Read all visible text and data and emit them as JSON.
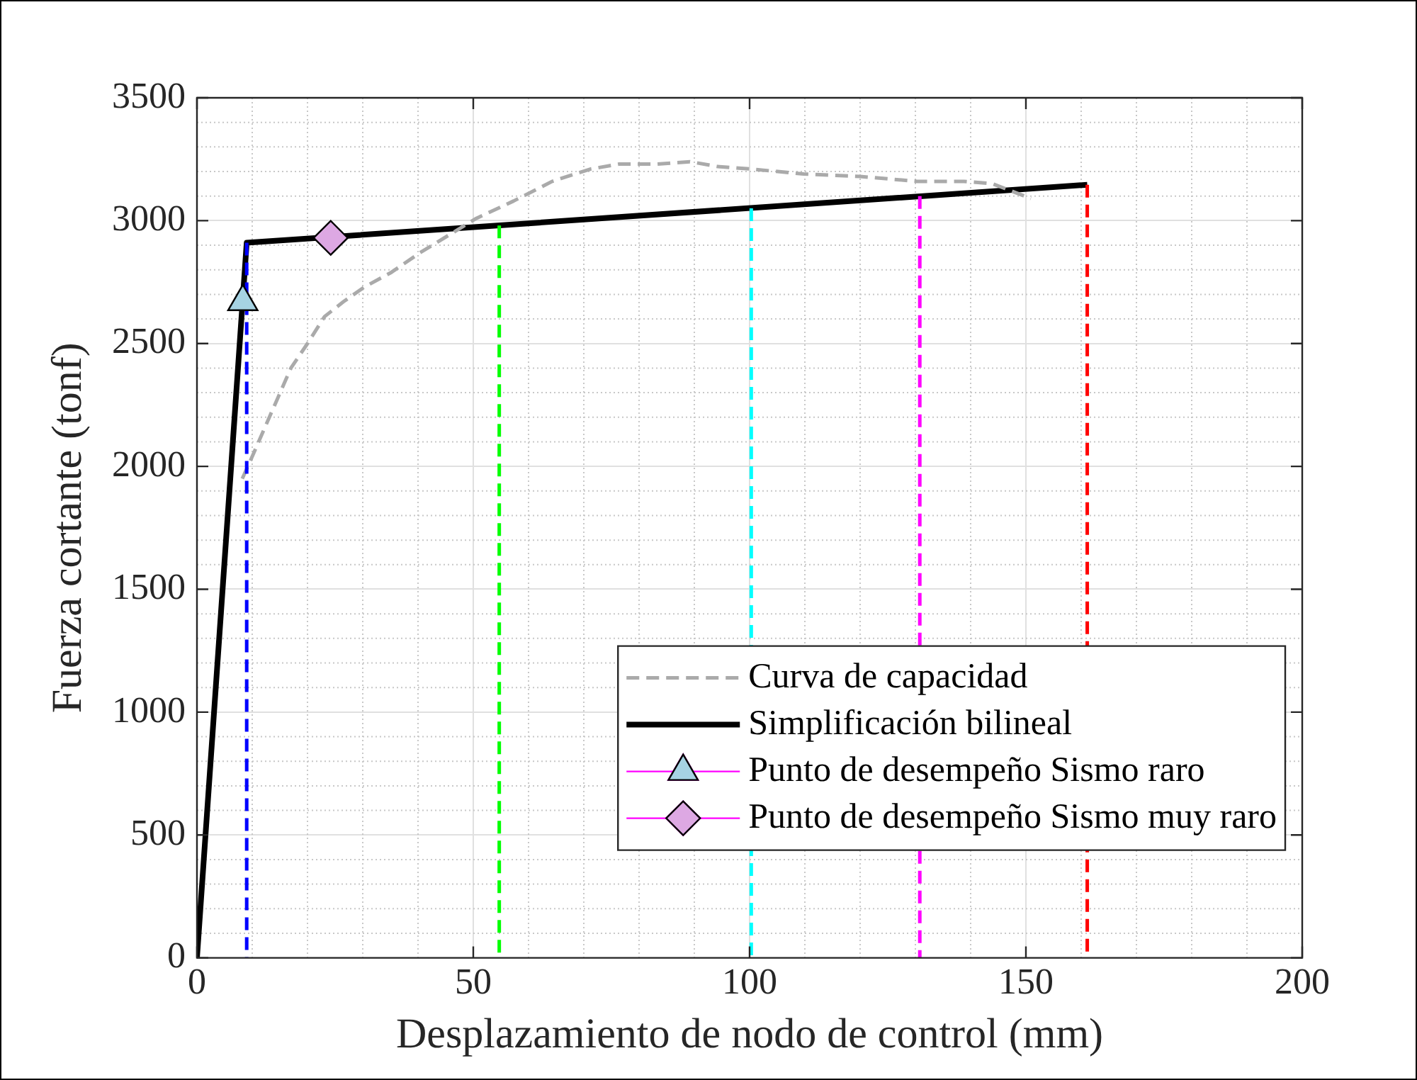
{
  "chart_data": {
    "type": "line",
    "xlabel": "Desplazamiento de nodo de control (mm)",
    "ylabel": "Fuerza cortante (tonf)",
    "xlim": [
      0,
      200
    ],
    "xticks": [
      0,
      50,
      100,
      150,
      200
    ],
    "ylim": [
      0,
      3500
    ],
    "yticks": [
      0,
      500,
      1000,
      1500,
      2000,
      2500,
      3000,
      3500
    ],
    "grid": true,
    "legend": "bottom right",
    "series": [
      {
        "name": "Curva de capacidad",
        "color": "#aaaaaa",
        "line_style": "dashed",
        "marker": "none",
        "x": [
          8.2,
          9.8,
          13.1,
          17.0,
          20.0,
          23.1,
          26.5,
          30.3,
          35.2,
          40.4,
          45.5,
          50.6,
          57.3,
          64.3,
          71.2,
          76.3,
          83.0,
          89.2,
          94.3,
          100.3,
          109.8,
          120,
          130.3,
          138.8,
          144,
          150.9
        ],
        "values": [
          1950,
          2030,
          2200,
          2400,
          2500,
          2610,
          2670,
          2730,
          2790,
          2870,
          2940,
          3010,
          3080,
          3160,
          3210,
          3230,
          3230,
          3240,
          3220,
          3210,
          3190,
          3180,
          3160,
          3160,
          3150,
          3090
        ]
      },
      {
        "name": "Simplificación bilineal",
        "color": "#000000",
        "line_style": "solid",
        "marker": "none",
        "x": [
          0,
          9.0,
          161.1
        ],
        "values": [
          0,
          2910,
          3146
        ]
      },
      {
        "color": "#0000ff",
        "line_style": "dashed",
        "marker": "none",
        "x": [
          9.0,
          9.0
        ],
        "values": [
          2910,
          0
        ]
      },
      {
        "color": "#00ff00",
        "line_style": "dashed",
        "marker": "none",
        "x": [
          54.7,
          54.7
        ],
        "values": [
          2980,
          0
        ]
      },
      {
        "color": "#00ffff",
        "line_style": "dashed",
        "marker": "none",
        "x": [
          100.3,
          100.3
        ],
        "values": [
          3050,
          0
        ]
      },
      {
        "color": "#ff00ff",
        "line_style": "dashed",
        "marker": "none",
        "x": [
          130.8,
          130.8
        ],
        "values": [
          3100,
          0
        ]
      },
      {
        "color": "#ff0000",
        "line_style": "dashed",
        "marker": "none",
        "x": [
          161.1,
          161.1
        ],
        "values": [
          3146,
          0
        ]
      },
      {
        "name": "Punto de desempeño Sismo raro",
        "type": "scatter",
        "color": "#a6d3e3",
        "marker": "triangle",
        "x": [
          8.3
        ],
        "values": [
          2670
        ]
      },
      {
        "name": "Punto de desempeño Sismo muy raro",
        "type": "scatter",
        "color": "#dda8e3",
        "marker": "diamond",
        "x": [
          24.2
        ],
        "values": [
          2930
        ]
      }
    ]
  }
}
